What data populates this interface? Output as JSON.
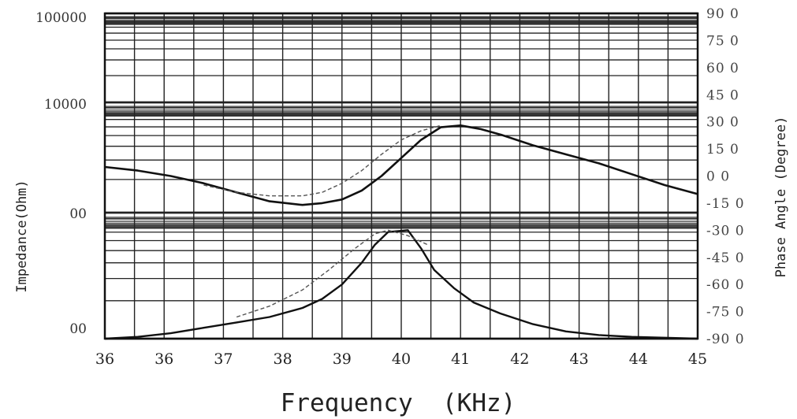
{
  "chart_data": {
    "type": "line",
    "title": "",
    "xlabel": "Frequency  (KHz)",
    "ylabel": "Impedance(Ohm)",
    "y2label": "Phase Angle (Degree)",
    "x_tick_labels": [
      "36",
      "36",
      "37",
      "38",
      "39",
      "40",
      "41",
      "42",
      "43",
      "44",
      "45"
    ],
    "y_tick_labels": [
      "100000",
      "10000",
      "00",
      "00"
    ],
    "y2_tick_labels": [
      "90 0",
      "75 0",
      "60 0",
      "45 0",
      "30 0",
      "15 0",
      "0 0",
      "-15 0",
      "-30 0",
      "-45 0",
      "-60 0",
      "-75 0",
      "-90 0"
    ],
    "xlim": [
      36,
      45
    ],
    "y2lim": [
      -90,
      90
    ],
    "grid": true,
    "series": [
      {
        "x": [
          36,
          36.5,
          37,
          37.5,
          38,
          38.5,
          39,
          39.3,
          39.6,
          39.9,
          40.2,
          40.5,
          40.8,
          41.1,
          41.4,
          41.7,
          42,
          42.5,
          43,
          43.5,
          44,
          44.5,
          45
        ],
        "y": [
          5,
          3,
          0,
          -4,
          -9,
          -14,
          -16,
          -15,
          -13,
          -8,
          0,
          10,
          20,
          27,
          28,
          26,
          23,
          17,
          12,
          7,
          1,
          -5,
          -10
        ]
      },
      {
        "x": [
          37.5,
          38,
          38.5,
          39,
          39.3,
          39.6,
          39.9,
          40.2,
          40.5,
          40.8,
          41.1
        ],
        "y": [
          -5,
          -9,
          -11,
          -11,
          -9,
          -4,
          3,
          12,
          20,
          25,
          28
        ]
      },
      {
        "x": [
          36,
          36.5,
          37,
          37.5,
          38,
          38.5,
          39,
          39.3,
          39.6,
          39.9,
          40.1,
          40.3,
          40.6,
          40.8,
          41,
          41.3,
          41.6,
          42,
          42.5,
          43,
          43.5,
          44,
          45
        ],
        "y": [
          -90,
          -89,
          -87,
          -84,
          -81,
          -78,
          -73,
          -68,
          -60,
          -48,
          -38,
          -31,
          -30,
          -40,
          -52,
          -62,
          -70,
          -76,
          -82,
          -86,
          -88,
          -89,
          -90
        ]
      },
      {
        "x": [
          38,
          38.5,
          39,
          39.4,
          39.8,
          40.1,
          40.3,
          40.6,
          40.9
        ],
        "y": [
          -78,
          -72,
          -63,
          -52,
          -40,
          -32,
          -30,
          -33,
          -38
        ]
      }
    ]
  }
}
